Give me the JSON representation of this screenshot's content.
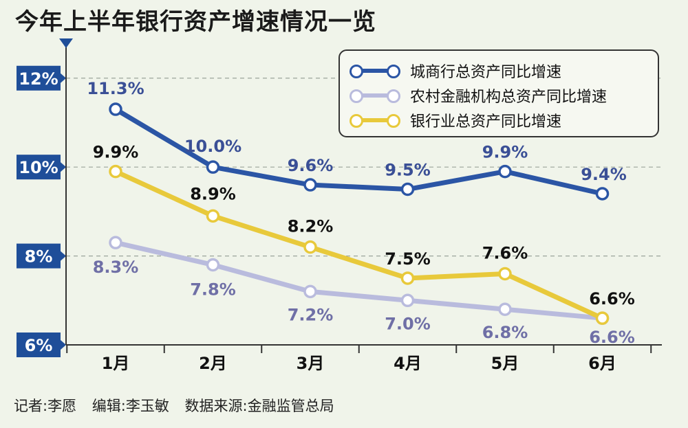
{
  "title": "今年上半年银行资产增速情况一览",
  "footer": {
    "reporter": "记者:李愿",
    "editor": "编辑:李玉敏",
    "source": "数据来源:金融监管总局"
  },
  "chart_data": {
    "type": "line",
    "categories": [
      "1月",
      "2月",
      "3月",
      "4月",
      "5月",
      "6月"
    ],
    "yticks": [
      "6%",
      "8%",
      "10%",
      "12%"
    ],
    "ylim": [
      6,
      12.8
    ],
    "grid": "dashed-horizontal",
    "legend_position": "top-right",
    "series": [
      {
        "name": "城商行总资产同比增速",
        "values": [
          11.3,
          10.0,
          9.6,
          9.5,
          9.9,
          9.4
        ],
        "labels": [
          "11.3%",
          "10.0%",
          "9.6%",
          "9.5%",
          "9.9%",
          "9.4%"
        ],
        "color": "#2b55a5",
        "label_color": "#3a4f96"
      },
      {
        "name": "农村金融机构总资产同比增速",
        "values": [
          8.3,
          7.8,
          7.2,
          7.0,
          6.8,
          6.6
        ],
        "labels": [
          "8.3%",
          "7.8%",
          "7.2%",
          "7.0%",
          "6.8%",
          "6.6%"
        ],
        "color": "#b9bbdd",
        "label_color": "#6f6fa6"
      },
      {
        "name": "银行业总资产同比增速",
        "values": [
          9.9,
          8.9,
          8.2,
          7.5,
          7.6,
          6.6
        ],
        "labels": [
          "9.9%",
          "8.9%",
          "8.2%",
          "7.5%",
          "7.6%",
          "6.6%"
        ],
        "color": "#e8c93b",
        "label_color": "#111111"
      }
    ]
  },
  "colors": {
    "axis": "#333333",
    "tick_badge": "#1f4e99",
    "grid": "#9aa39a",
    "background": "#f0f4ea"
  }
}
